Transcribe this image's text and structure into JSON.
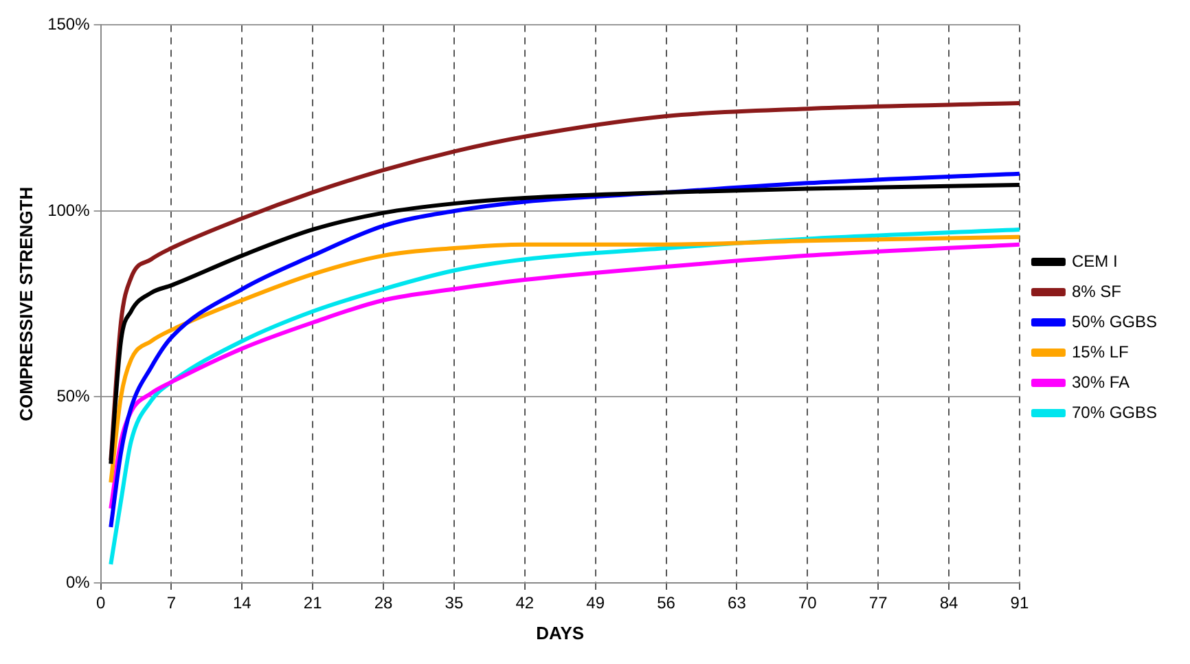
{
  "chart_data": {
    "type": "line",
    "xlabel": "DAYS",
    "ylabel": "COMPRESSIVE STRENGTH",
    "xlim": [
      0,
      91
    ],
    "xticks": [
      0,
      7,
      14,
      21,
      28,
      35,
      42,
      49,
      56,
      63,
      70,
      77,
      84,
      91
    ],
    "ylim": [
      0,
      150
    ],
    "yticks": [
      {
        "value": 0,
        "label": "0%"
      },
      {
        "value": 50,
        "label": "50%"
      },
      {
        "value": 100,
        "label": "100%"
      },
      {
        "value": 150,
        "label": "150%"
      }
    ],
    "grid": true,
    "legend": "right",
    "marker": "none",
    "line_style": "solid",
    "x": [
      1,
      2,
      3,
      5,
      7,
      14,
      21,
      28,
      35,
      42,
      56,
      70,
      91
    ],
    "series": [
      {
        "name": "CEM I",
        "color": "#000000",
        "values": [
          32,
          65,
          73,
          78,
          80,
          88,
          95,
          99.5,
          102,
          103.5,
          105,
          106,
          107
        ]
      },
      {
        "name": "8% SF",
        "color": "#8b1a1a",
        "values": [
          33,
          70,
          82,
          87,
          90,
          98,
          105,
          111,
          116,
          120,
          125.5,
          127.5,
          129
        ]
      },
      {
        "name": "50% GGBS",
        "color": "#0000ff",
        "values": [
          15,
          35,
          47,
          58,
          66,
          79,
          88,
          96,
          100,
          102.5,
          105,
          107.5,
          110
        ]
      },
      {
        "name": "15% LF",
        "color": "#ffa500",
        "values": [
          27,
          50,
          60,
          65,
          68,
          76,
          83,
          88,
          90,
          91,
          91,
          92,
          93
        ]
      },
      {
        "name": "30% FA",
        "color": "#ff00ff",
        "values": [
          20,
          38,
          46,
          51,
          54,
          63,
          70,
          76,
          79,
          81.5,
          85,
          88,
          91
        ]
      },
      {
        "name": "70% GGBS",
        "color": "#00e5ee",
        "values": [
          5,
          22,
          38,
          49,
          54,
          65,
          73,
          79,
          84,
          87,
          90,
          92.5,
          95
        ]
      }
    ]
  }
}
